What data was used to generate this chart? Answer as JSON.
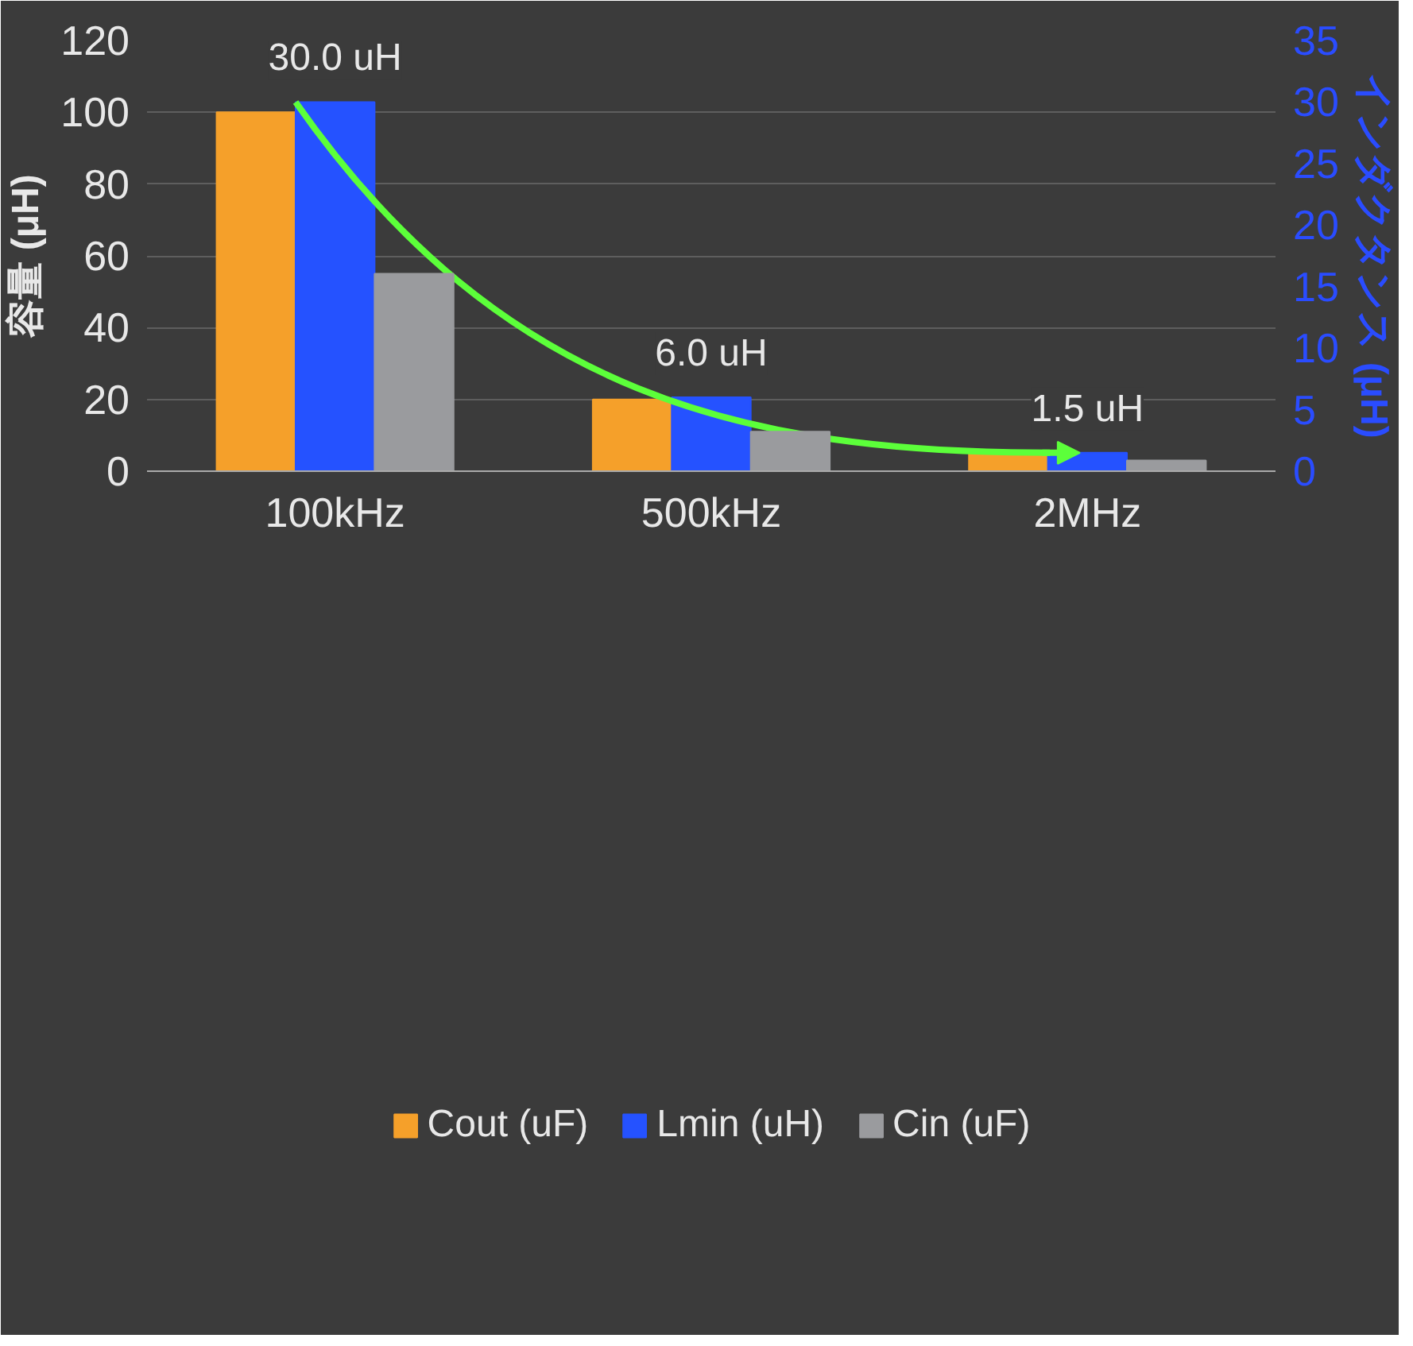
{
  "chart_data": {
    "type": "bar",
    "categories": [
      "100kHz",
      "500kHz",
      "2MHz"
    ],
    "series": [
      {
        "name": "Cout (uF)",
        "color": "#f5a02a",
        "values": [
          100,
          20,
          5
        ]
      },
      {
        "name": "Lmin (uH)",
        "color": "#2552ff",
        "values": [
          30,
          6,
          1.5
        ],
        "axis": "y2",
        "value_labels": [
          "30.0 uH",
          "6.0 uH",
          "1.5 uH"
        ]
      },
      {
        "name": "Cin (uF)",
        "color": "#9a9b9e",
        "values": [
          55,
          11,
          3
        ]
      }
    ],
    "ylabel": "容量 (μH)",
    "y2label": "インダクタンス (μH)",
    "ylim": [
      0,
      120
    ],
    "yticks": [
      0,
      20,
      40,
      60,
      80,
      100,
      120
    ],
    "y2lim": [
      0,
      35
    ],
    "y2ticks": [
      0,
      5,
      10,
      15,
      20,
      25,
      30,
      35
    ],
    "grid": "y",
    "legend": "bottom"
  }
}
